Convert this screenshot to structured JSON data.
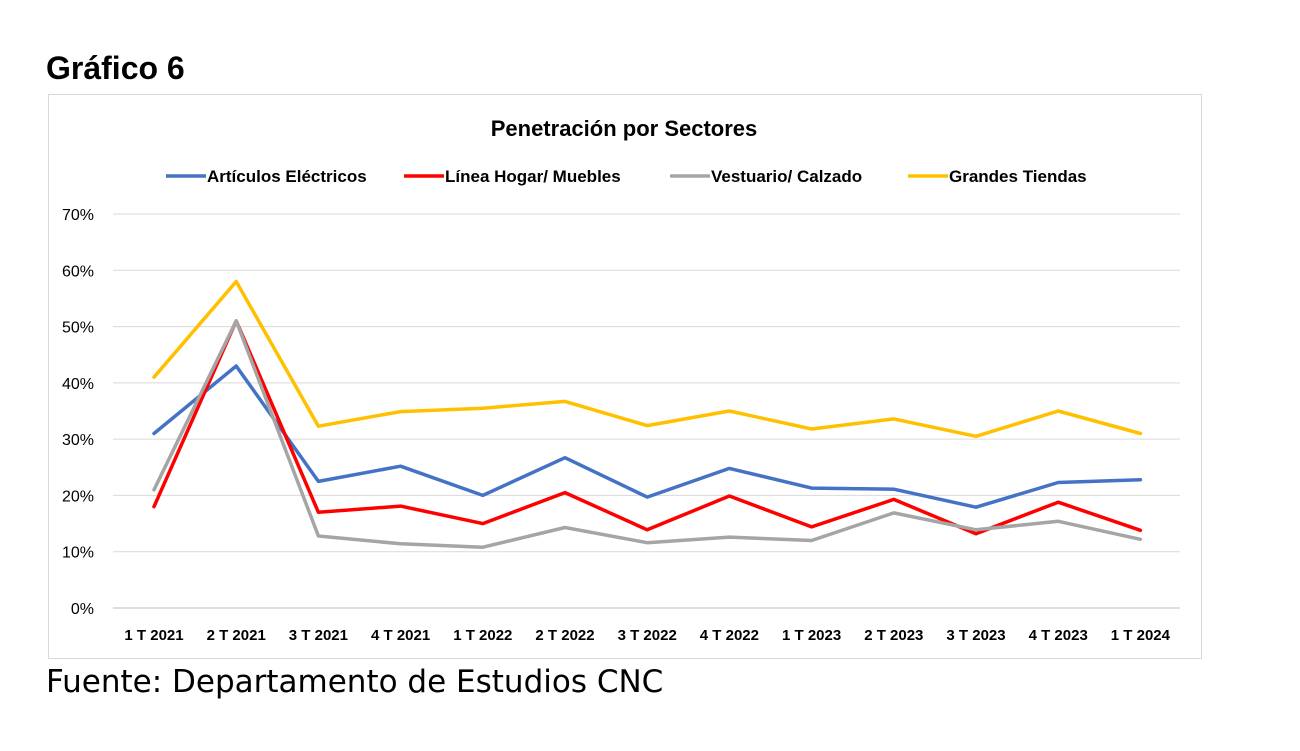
{
  "heading": "Gráfico 6",
  "source": "Fuente: Departamento de Estudios CNC",
  "chart_data": {
    "type": "line",
    "title": "Penetración por Sectores",
    "xlabel": "",
    "ylabel": "",
    "categories": [
      "1 T 2021",
      "2 T 2021",
      "3 T 2021",
      "4 T 2021",
      "1 T 2022",
      "2 T 2022",
      "3 T 2022",
      "4 T 2022",
      "1 T 2023",
      "2 T 2023",
      "3 T 2023",
      "4 T 2023",
      "1 T 2024"
    ],
    "ylim": [
      0,
      0.7
    ],
    "yticks": [
      "0%",
      "10%",
      "20%",
      "30%",
      "40%",
      "50%",
      "60%",
      "70%"
    ],
    "grid": true,
    "legend_position": "top",
    "series": [
      {
        "name": "Artículos Eléctricos",
        "color": "#4472C4",
        "values": [
          0.31,
          0.43,
          0.225,
          0.252,
          0.2,
          0.267,
          0.197,
          0.248,
          0.213,
          0.211,
          0.179,
          0.223,
          0.228
        ]
      },
      {
        "name": "Línea Hogar/ Muebles",
        "color": "#FF0000",
        "values": [
          0.18,
          0.51,
          0.17,
          0.181,
          0.15,
          0.205,
          0.139,
          0.199,
          0.144,
          0.193,
          0.132,
          0.188,
          0.138
        ]
      },
      {
        "name": "Vestuario/ Calzado",
        "color": "#A5A5A5",
        "values": [
          0.21,
          0.51,
          0.128,
          0.114,
          0.108,
          0.143,
          0.116,
          0.126,
          0.12,
          0.169,
          0.139,
          0.154,
          0.122
        ]
      },
      {
        "name": "Grandes Tiendas",
        "color": "#FFC000",
        "values": [
          0.41,
          0.58,
          0.323,
          0.349,
          0.355,
          0.367,
          0.324,
          0.35,
          0.318,
          0.336,
          0.305,
          0.35,
          0.31
        ]
      }
    ]
  }
}
